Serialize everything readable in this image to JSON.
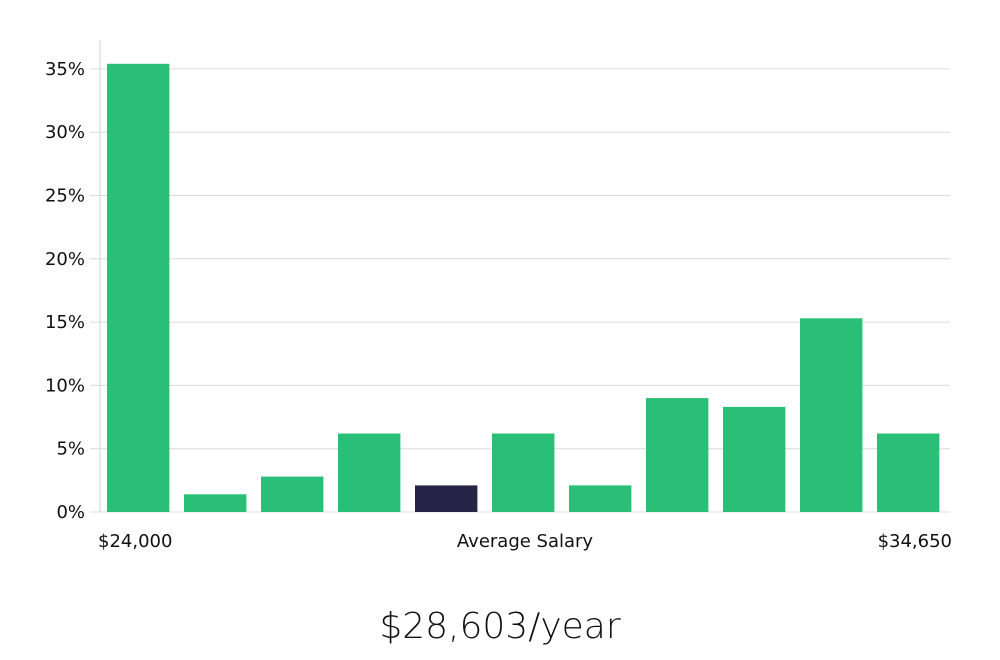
{
  "chart_data": {
    "type": "bar",
    "title": "",
    "xlabel": "Average Salary",
    "ylabel": "",
    "x_min_label": "$24,000",
    "x_max_label": "$34,650",
    "ylim": [
      0,
      37
    ],
    "yticks": [
      0,
      5,
      10,
      15,
      20,
      25,
      30,
      35
    ],
    "ytick_labels": [
      "0%",
      "5%",
      "10%",
      "15%",
      "20%",
      "25%",
      "30%",
      "35%"
    ],
    "values": [
      35.4,
      1.4,
      2.8,
      6.2,
      2.1,
      6.2,
      2.1,
      9.0,
      8.3,
      15.3,
      6.2
    ],
    "highlight_index": 4,
    "bar_color": "#2abf77",
    "highlight_color": "#262447"
  },
  "average_salary": "$28,603/year"
}
